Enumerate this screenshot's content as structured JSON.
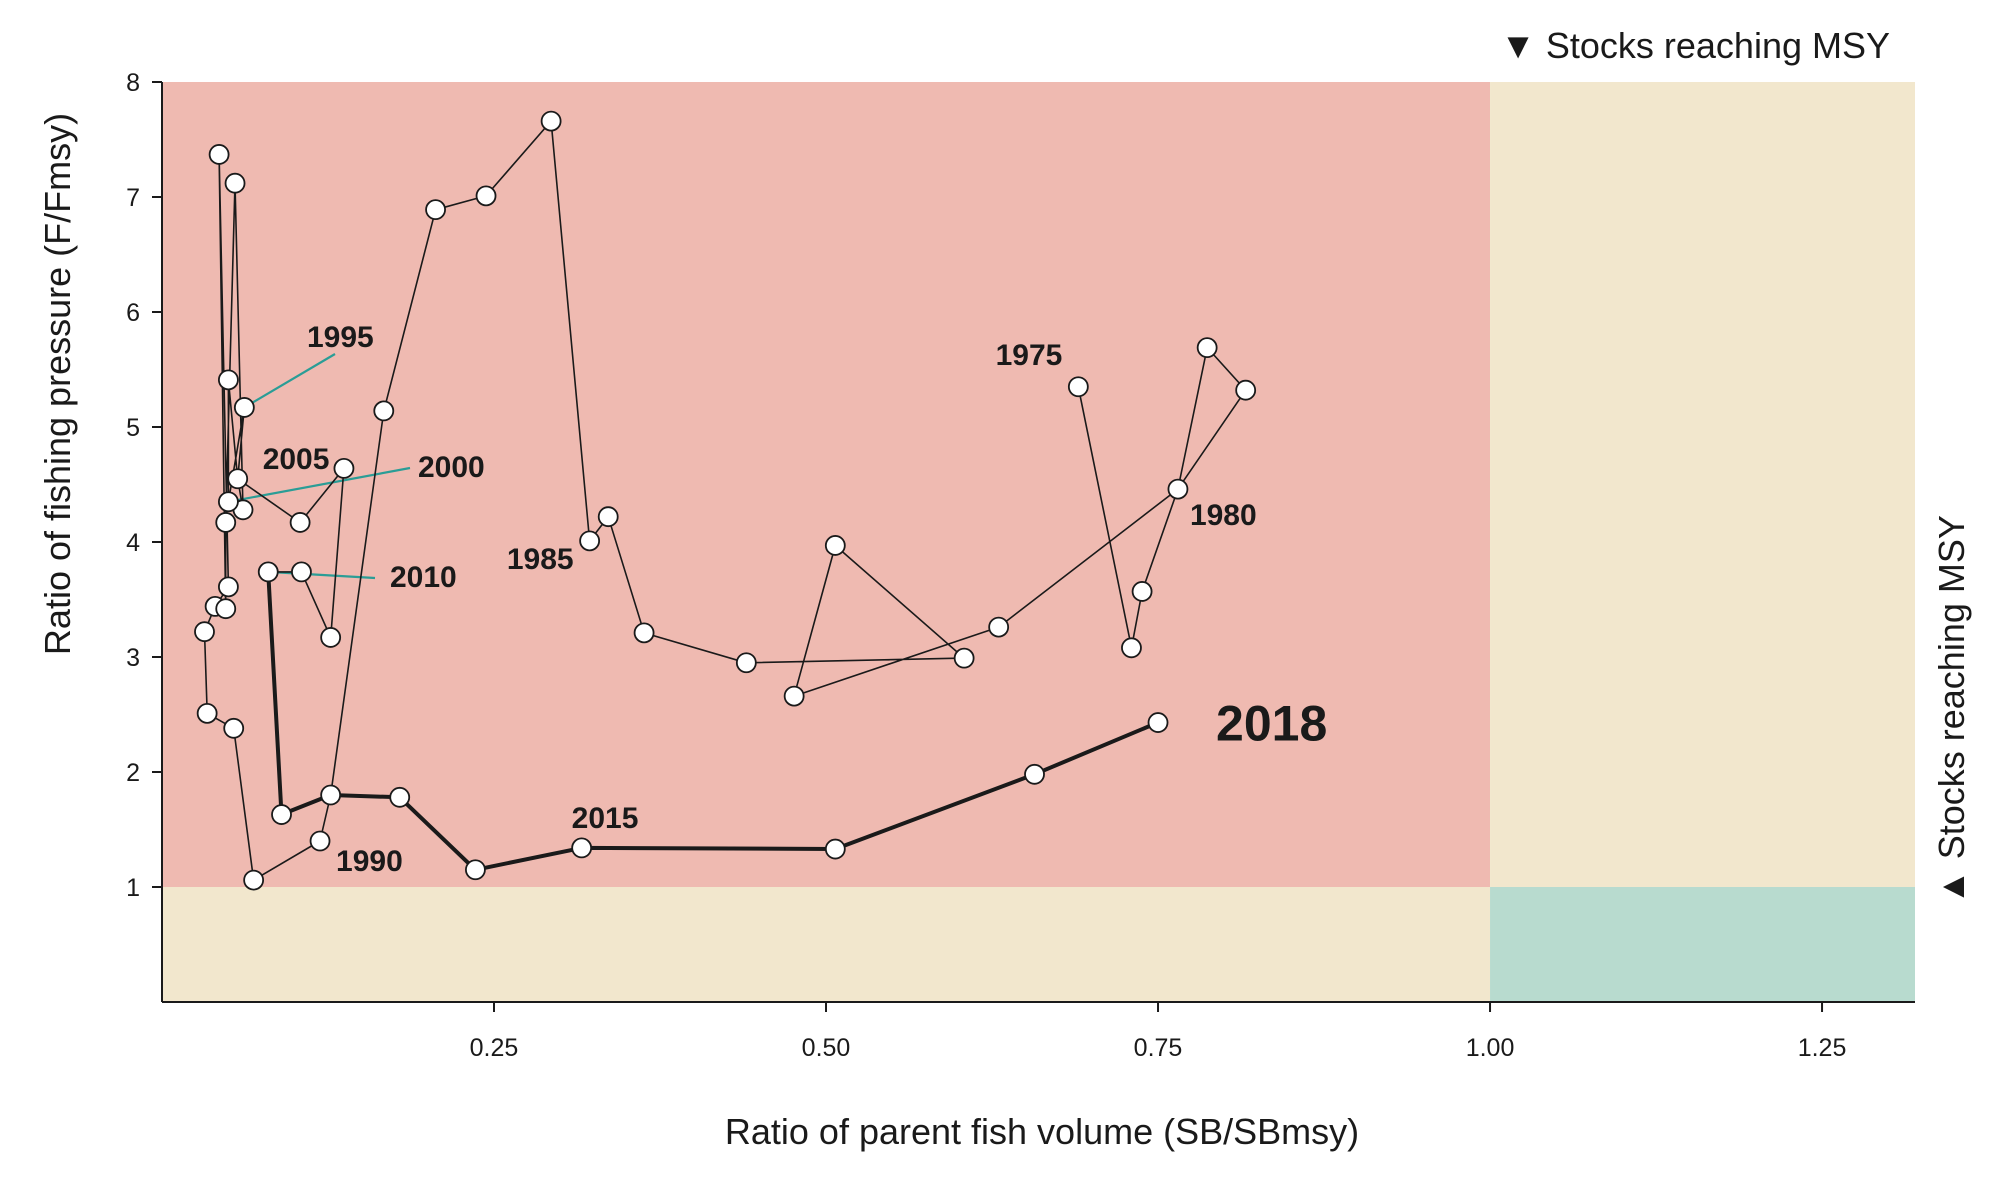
{
  "chart_data": {
    "type": "line",
    "xlabel": "Ratio of parent fish volume (SB/SBmsy)",
    "ylabel": "Ratio of fishing pressure (F/Fmsy)",
    "xlim": [
      0,
      1.32
    ],
    "ylim": [
      0,
      8
    ],
    "x_ticks": [
      {
        "value": 0.25,
        "label": "0.25"
      },
      {
        "value": 0.5,
        "label": "0.50"
      },
      {
        "value": 0.75,
        "label": "0.75"
      },
      {
        "value": 1.0,
        "label": "1.00"
      },
      {
        "value": 1.25,
        "label": "1.25"
      }
    ],
    "y_ticks": [
      {
        "value": 1,
        "label": "1"
      },
      {
        "value": 2,
        "label": "2"
      },
      {
        "value": 3,
        "label": "3"
      },
      {
        "value": 4,
        "label": "4"
      },
      {
        "value": 5,
        "label": "5"
      },
      {
        "value": 6,
        "label": "6"
      },
      {
        "value": 7,
        "label": "7"
      },
      {
        "value": 8,
        "label": "8"
      }
    ],
    "grid": false,
    "zones": [
      {
        "x": [
          0,
          1.0
        ],
        "y": [
          1,
          8
        ],
        "color": "#efbab1"
      },
      {
        "x": [
          1.0,
          1.32
        ],
        "y": [
          1,
          8
        ],
        "color": "#f2e7cd"
      },
      {
        "x": [
          0,
          1.0
        ],
        "y": [
          0,
          1
        ],
        "color": "#f2e7cd"
      },
      {
        "x": [
          1.0,
          1.32
        ],
        "y": [
          0,
          1
        ],
        "color": "#b8dbcf"
      }
    ],
    "msy_labels": {
      "top": "▼ Stocks reaching MSY",
      "right": "▲ Stocks reaching MSY"
    },
    "series": [
      {
        "style": "thin",
        "points": [
          [
            0.69,
            5.35
          ],
          [
            0.73,
            3.08
          ],
          [
            0.738,
            3.57
          ],
          [
            0.765,
            4.46
          ],
          [
            0.787,
            5.69
          ],
          [
            0.816,
            5.32
          ],
          [
            0.765,
            4.46
          ],
          [
            0.63,
            3.26
          ],
          [
            0.476,
            2.66
          ],
          [
            0.507,
            3.97
          ],
          [
            0.604,
            2.99
          ],
          [
            0.44,
            2.95
          ],
          [
            0.363,
            3.21
          ],
          [
            0.336,
            4.22
          ],
          [
            0.322,
            4.01
          ],
          [
            0.293,
            7.66
          ],
          [
            0.244,
            7.01
          ],
          [
            0.206,
            6.89
          ],
          [
            0.167,
            5.14
          ],
          [
            0.127,
            1.8
          ],
          [
            0.119,
            1.4
          ],
          [
            0.069,
            1.06
          ],
          [
            0.054,
            2.38
          ],
          [
            0.034,
            2.51
          ],
          [
            0.032,
            3.22
          ],
          [
            0.04,
            3.44
          ],
          [
            0.05,
            3.61
          ],
          [
            0.043,
            7.37
          ],
          [
            0.048,
            3.42
          ],
          [
            0.048,
            4.17
          ],
          [
            0.055,
            7.12
          ],
          [
            0.061,
            4.28
          ],
          [
            0.057,
            4.55
          ],
          [
            0.062,
            5.17
          ],
          [
            0.05,
            4.35
          ],
          [
            0.05,
            5.41
          ],
          [
            0.057,
            4.55
          ],
          [
            0.104,
            4.17
          ],
          [
            0.137,
            4.64
          ],
          [
            0.127,
            3.17
          ],
          [
            0.105,
            3.74
          ],
          [
            0.08,
            3.74
          ]
        ]
      },
      {
        "style": "thick",
        "points": [
          [
            0.08,
            3.74
          ],
          [
            0.09,
            1.63
          ],
          [
            0.127,
            1.8
          ],
          [
            0.179,
            1.78
          ],
          [
            0.236,
            1.15
          ],
          [
            0.316,
            1.34
          ],
          [
            0.507,
            1.33
          ],
          [
            0.657,
            1.98
          ],
          [
            0.75,
            2.43
          ]
        ]
      }
    ],
    "annotations": [
      {
        "text": "1975",
        "x": 0.69,
        "y": 5.35
      },
      {
        "text": "1980",
        "x": 0.765,
        "y": 4.46
      },
      {
        "text": "1985",
        "x": 0.322,
        "y": 4.01
      },
      {
        "text": "1990",
        "x": 0.119,
        "y": 1.4
      },
      {
        "text": "1995",
        "x": 0.062,
        "y": 5.17,
        "leader": true
      },
      {
        "text": "2000",
        "x": 0.05,
        "y": 4.35,
        "leader": true
      },
      {
        "text": "2005",
        "x": 0.057,
        "y": 4.55
      },
      {
        "text": "2010",
        "x": 0.08,
        "y": 3.74,
        "leader": true
      },
      {
        "text": "2015",
        "x": 0.316,
        "y": 1.34
      },
      {
        "text": "2018",
        "x": 0.75,
        "y": 2.43,
        "emphasis": true
      }
    ],
    "colors": {
      "line": "#1a1a1a",
      "marker_fill": "#ffffff",
      "leader": "#2a9d96"
    }
  }
}
